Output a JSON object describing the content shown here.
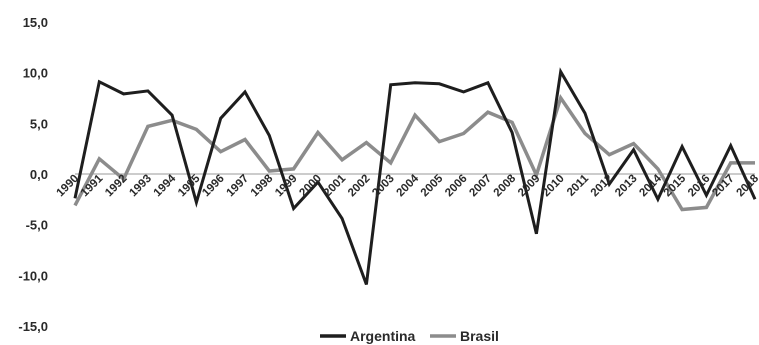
{
  "chart_data": {
    "type": "line",
    "title": "",
    "xlabel": "",
    "ylabel": "",
    "x": [
      "1990",
      "1991",
      "1992",
      "1993",
      "1994",
      "1995",
      "1996",
      "1997",
      "1998",
      "1999",
      "2000",
      "2001",
      "2002",
      "2003",
      "2004",
      "2005",
      "2006",
      "2007",
      "2008",
      "2009",
      "2010",
      "2011",
      "2012",
      "2013",
      "2014",
      "2015",
      "2016",
      "2017",
      "2018"
    ],
    "y_ticks": [
      "15,0",
      "10,0",
      "5,0",
      "0,0",
      "-5,0",
      "-10,0",
      "-15,0"
    ],
    "ylim": [
      -15,
      15
    ],
    "grid": false,
    "legend_position": "bottom",
    "series": [
      {
        "name": "Argentina",
        "color": "#1e1e1e",
        "values": [
          -2.4,
          9.1,
          7.9,
          8.2,
          5.8,
          -2.8,
          5.5,
          8.1,
          3.8,
          -3.4,
          -0.8,
          -4.4,
          -10.9,
          8.8,
          9.0,
          8.9,
          8.1,
          9.0,
          4.1,
          -5.9,
          10.1,
          6.0,
          -1.0,
          2.4,
          -2.5,
          2.7,
          -2.1,
          2.8,
          -2.5
        ]
      },
      {
        "name": "Brasil",
        "color": "#8c8c8c",
        "values": [
          -3.1,
          1.5,
          -0.5,
          4.7,
          5.3,
          4.4,
          2.2,
          3.4,
          0.3,
          0.5,
          4.1,
          1.4,
          3.1,
          1.1,
          5.8,
          3.2,
          4.0,
          6.1,
          5.1,
          -0.1,
          7.5,
          4.0,
          1.9,
          3.0,
          0.5,
          -3.5,
          -3.3,
          1.1,
          1.1
        ]
      }
    ]
  }
}
